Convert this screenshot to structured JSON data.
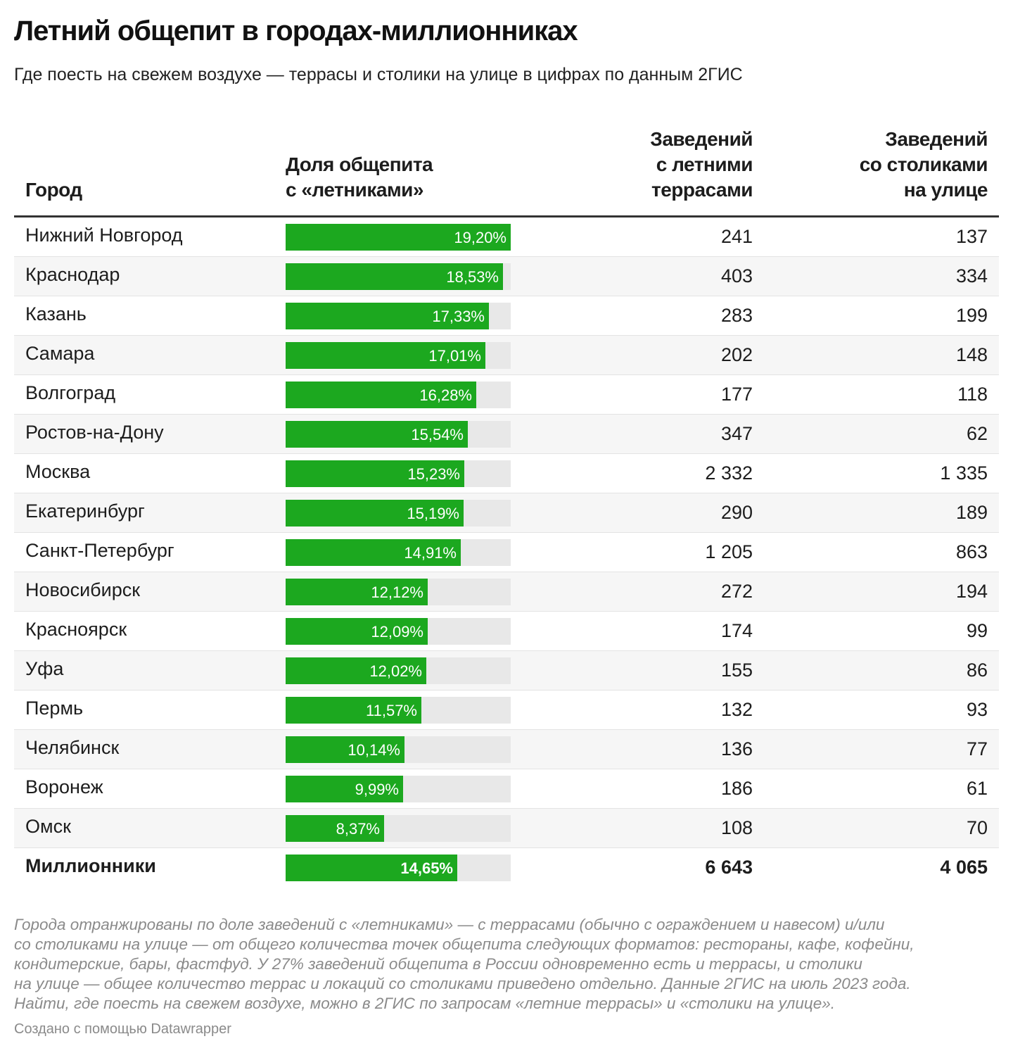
{
  "chart_data": {
    "type": "table",
    "title": "Летний общепит в городах-миллионниках",
    "subtitle": "Где поесть на свежем воздухе — террасы и столики на улице в цифрах по данным 2ГИС",
    "columns": [
      "Город",
      [
        "Доля общепита",
        "с «летниками»"
      ],
      [
        "Заведений",
        "с летними",
        "террасами"
      ],
      [
        "Заведений",
        "со столиками",
        "на улице"
      ]
    ],
    "bar_max": 19.2,
    "bar_color": "#1ca81f",
    "rows": [
      {
        "city": "Нижний Новгород",
        "share": 19.2,
        "share_label": "19,20%",
        "terraces": "241",
        "tables": "137"
      },
      {
        "city": "Краснодар",
        "share": 18.53,
        "share_label": "18,53%",
        "terraces": "403",
        "tables": "334"
      },
      {
        "city": "Казань",
        "share": 17.33,
        "share_label": "17,33%",
        "terraces": "283",
        "tables": "199"
      },
      {
        "city": "Самара",
        "share": 17.01,
        "share_label": "17,01%",
        "terraces": "202",
        "tables": "148"
      },
      {
        "city": "Волгоград",
        "share": 16.28,
        "share_label": "16,28%",
        "terraces": "177",
        "tables": "118"
      },
      {
        "city": "Ростов-на-Дону",
        "share": 15.54,
        "share_label": "15,54%",
        "terraces": "347",
        "tables": "62"
      },
      {
        "city": "Москва",
        "share": 15.23,
        "share_label": "15,23%",
        "terraces": "2 332",
        "tables": "1 335"
      },
      {
        "city": "Екатеринбург",
        "share": 15.19,
        "share_label": "15,19%",
        "terraces": "290",
        "tables": "189"
      },
      {
        "city": "Санкт-Петербург",
        "share": 14.91,
        "share_label": "14,91%",
        "terraces": "1 205",
        "tables": "863"
      },
      {
        "city": "Новосибирск",
        "share": 12.12,
        "share_label": "12,12%",
        "terraces": "272",
        "tables": "194"
      },
      {
        "city": "Красноярск",
        "share": 12.09,
        "share_label": "12,09%",
        "terraces": "174",
        "tables": "99"
      },
      {
        "city": "Уфа",
        "share": 12.02,
        "share_label": "12,02%",
        "terraces": "155",
        "tables": "86"
      },
      {
        "city": "Пермь",
        "share": 11.57,
        "share_label": "11,57%",
        "terraces": "132",
        "tables": "93"
      },
      {
        "city": "Челябинск",
        "share": 10.14,
        "share_label": "10,14%",
        "terraces": "136",
        "tables": "77"
      },
      {
        "city": "Воронеж",
        "share": 9.99,
        "share_label": "9,99%",
        "terraces": "186",
        "tables": "61"
      },
      {
        "city": "Омск",
        "share": 8.37,
        "share_label": "8,37%",
        "terraces": "108",
        "tables": "70"
      },
      {
        "city": "Миллионники",
        "share": 14.65,
        "share_label": "14,65%",
        "terraces": "6 643",
        "tables": "4 065",
        "total": true
      }
    ]
  },
  "notes": [
    "Города отранжированы по доле заведений с «летниками» — с террасами (обычно с ограждением и навесом) и/или",
    "со столиками на улице — от общего количества точек общепита следующих форматов: рестораны, кафе, кофейни,",
    "кондитерские, бары, фастфуд. У 27% заведений общепита в России одновременно есть и террасы, и столики",
    "на улице — общее количество террас и локаций со столиками приведено отдельно. Данные 2ГИС на июль 2023 года.",
    "Найти, где поесть на свежем воздухе, можно в 2ГИС по запросам «летние террасы» и «столики на улице»."
  ],
  "credit": "Создано с помощью Datawrapper"
}
